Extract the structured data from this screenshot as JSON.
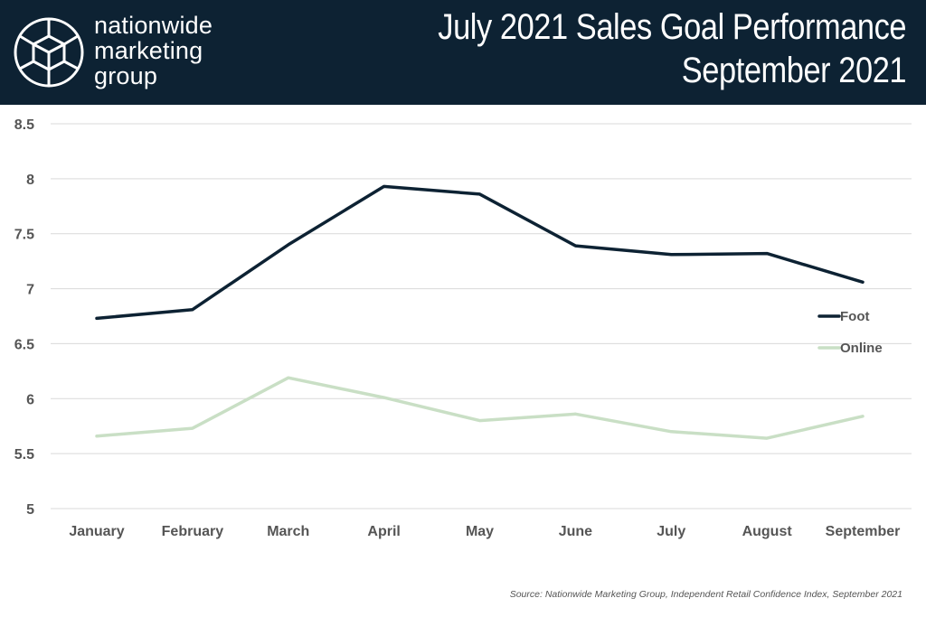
{
  "header": {
    "brand_lines": [
      "nationwide",
      "marketing",
      "group"
    ],
    "title_line1": "July 2021 Sales Goal Performance",
    "title_line2": "September 2021",
    "background_color": "#0d2233",
    "logo_icon": "geodesic-sphere-icon"
  },
  "chart_data": {
    "type": "line",
    "categories": [
      "January",
      "February",
      "March",
      "April",
      "May",
      "June",
      "July",
      "August",
      "September"
    ],
    "series": [
      {
        "name": "Foot",
        "color": "#0d2233",
        "values": [
          6.73,
          6.81,
          7.4,
          7.93,
          7.86,
          7.39,
          7.31,
          7.32,
          7.06
        ]
      },
      {
        "name": "Online",
        "color": "#c9dfc5",
        "values": [
          5.66,
          5.73,
          6.19,
          6.01,
          5.8,
          5.86,
          5.7,
          5.64,
          5.84
        ]
      }
    ],
    "ylim": [
      5,
      8.5
    ],
    "yticks": [
      "8.5",
      "8",
      "7.5",
      "7",
      "6.5",
      "6",
      "5.5",
      "5"
    ],
    "ytick_values": [
      8.5,
      8,
      7.5,
      7,
      6.5,
      6,
      5.5,
      5
    ],
    "grid": true,
    "legend_position": "right"
  },
  "source": "Source: Nationwide Marketing Group, Independent Retail Confidence Index, September 2021"
}
